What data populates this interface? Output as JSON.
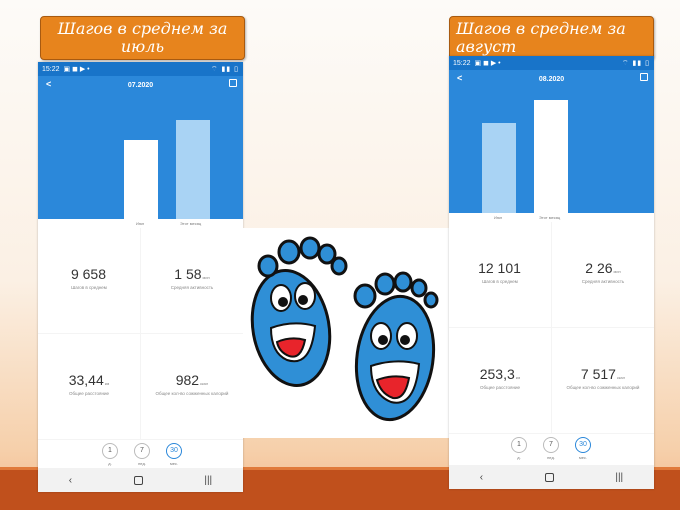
{
  "captions": {
    "left": "Шагов в среднем за июль",
    "right": "Шагов в среднем за август"
  },
  "left_phone": {
    "status_time": "15:22",
    "title": "07.2020",
    "bar_labels": [
      "Июл",
      "Этот месяц"
    ],
    "bar_values_fraction": [
      0.7,
      0.88
    ],
    "stats": [
      {
        "value": "9 658",
        "unit": "",
        "label": "Шагов в среднем"
      },
      {
        "value": "1 58",
        "unit": "мин",
        "label": "Средняя активность"
      },
      {
        "value": "33,44",
        "unit": "км",
        "label": "Общее расстояние"
      },
      {
        "value": "982",
        "unit": "ккал",
        "label": "Общее кол-во сожженных калорий"
      }
    ],
    "periods": [
      {
        "num": "1",
        "label": "д."
      },
      {
        "num": "7",
        "label": "нед."
      },
      {
        "num": "30",
        "label": "мес."
      }
    ],
    "active_period": 2
  },
  "right_phone": {
    "status_time": "15:22",
    "title": "08.2020",
    "bar_labels": [
      "Июл",
      "Этот месяц"
    ],
    "bar_values_fraction": [
      0.8,
      1.0
    ],
    "stats": [
      {
        "value": "12 101",
        "unit": "",
        "label": "Шагов в среднем"
      },
      {
        "value": "2 26",
        "unit": "мин",
        "label": "Средняя активность"
      },
      {
        "value": "253,3",
        "unit": "км",
        "label": "Общее расстояние"
      },
      {
        "value": "7 517",
        "unit": "ккал",
        "label": "Общее кол-во сожженных калорий"
      }
    ],
    "periods": [
      {
        "num": "1",
        "label": "д."
      },
      {
        "num": "7",
        "label": "нед."
      },
      {
        "num": "30",
        "label": "мес."
      }
    ],
    "active_period": 2
  },
  "colors": {
    "caption": "#e7841d",
    "app_blue": "#2b88da",
    "bar_light": "#a9d3f4",
    "foot_blue": "#2f8fd6"
  }
}
